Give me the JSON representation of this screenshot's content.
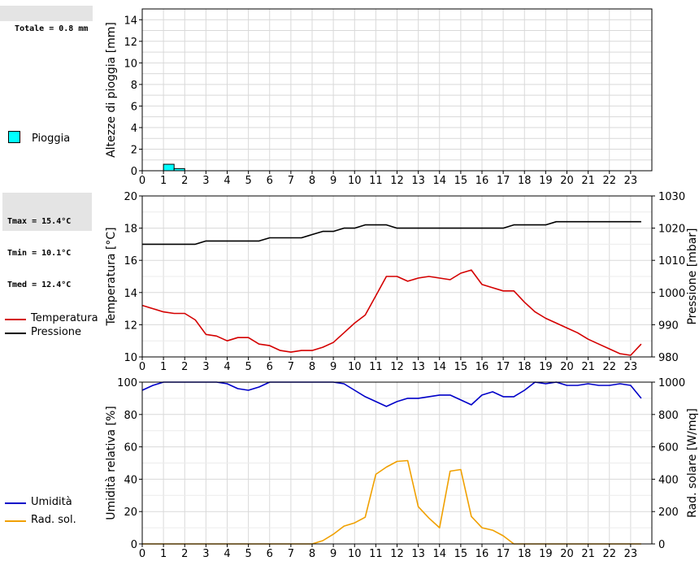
{
  "rain_box": {
    "line1": "Totale = 0.8 mm"
  },
  "temp_box": {
    "line1": "Tmax = 15.4°C",
    "line2": "Tmin = 10.1°C",
    "line3": "Tmed = 12.4°C"
  },
  "legends": {
    "rain": {
      "label": "Pioggia",
      "color": "#00ffff"
    },
    "temperature": {
      "label": "Temperatura",
      "color": "#d40000"
    },
    "pressure": {
      "label": "Pressione",
      "color": "#000000"
    },
    "humidity": {
      "label": "Umidità",
      "color": "#0000c8"
    },
    "solar": {
      "label": "Rad. sol.",
      "color": "#f0a000"
    }
  },
  "chart_data": [
    {
      "type": "bar",
      "ylabel": "Altezze di pioggia [mm]",
      "ylim": [
        0,
        15
      ],
      "y_ticks": [
        0,
        2,
        4,
        6,
        8,
        10,
        12,
        14
      ],
      "x_ticks": [
        "0",
        "1",
        "2",
        "3",
        "4",
        "5",
        "6",
        "7",
        "8",
        "9",
        "10",
        "11",
        "12",
        "13",
        "14",
        "15",
        "16",
        "17",
        "18",
        "19",
        "20",
        "21",
        "22",
        "23"
      ],
      "bar_width_hours": 0.5,
      "series": [
        {
          "name": "Pioggia",
          "x": [
            1.0,
            1.5
          ],
          "values": [
            0.6,
            0.2
          ]
        }
      ]
    },
    {
      "type": "line",
      "ylabel": "Temperatura [°C]",
      "y2label": "Pressione [mbar]",
      "ylim": [
        10,
        20
      ],
      "y2lim": [
        980,
        1030
      ],
      "y_ticks": [
        10,
        12,
        14,
        16,
        18,
        20
      ],
      "y2_ticks": [
        980,
        990,
        1000,
        1010,
        1020,
        1030
      ],
      "x_ticks": [
        "0",
        "1",
        "2",
        "3",
        "4",
        "5",
        "6",
        "7",
        "8",
        "9",
        "10",
        "11",
        "12",
        "13",
        "14",
        "15",
        "16",
        "17",
        "18",
        "19",
        "20",
        "21",
        "22",
        "23"
      ],
      "series": [
        {
          "name": "Temperatura",
          "axis": "left",
          "x": [
            0,
            0.5,
            1,
            1.5,
            2,
            2.5,
            3,
            3.5,
            4,
            4.5,
            5,
            5.5,
            6,
            6.5,
            7,
            7.5,
            8,
            8.5,
            9,
            9.5,
            10,
            10.5,
            11,
            11.5,
            12,
            12.5,
            13,
            13.5,
            14,
            14.5,
            15,
            15.5,
            16,
            16.5,
            17,
            17.5,
            18,
            18.5,
            19,
            19.5,
            20,
            20.5,
            21,
            21.5,
            22,
            22.5,
            23,
            23.5
          ],
          "values": [
            13.2,
            13.0,
            12.8,
            12.7,
            12.7,
            12.3,
            11.4,
            11.3,
            11.0,
            11.2,
            11.2,
            10.8,
            10.7,
            10.4,
            10.3,
            10.4,
            10.4,
            10.6,
            10.9,
            11.5,
            12.1,
            12.6,
            13.8,
            15.0,
            15.0,
            14.7,
            14.9,
            15.0,
            14.9,
            14.8,
            15.2,
            15.4,
            14.5,
            14.3,
            14.1,
            14.1,
            13.4,
            12.8,
            12.4,
            12.1,
            11.8,
            11.5,
            11.1,
            10.8,
            10.5,
            10.2,
            10.1,
            10.8
          ]
        },
        {
          "name": "Pressione",
          "axis": "right",
          "x": [
            0,
            0.5,
            1,
            1.5,
            2,
            2.5,
            3,
            3.5,
            4,
            4.5,
            5,
            5.5,
            6,
            6.5,
            7,
            7.5,
            8,
            8.5,
            9,
            9.5,
            10,
            10.5,
            11,
            11.5,
            12,
            12.5,
            13,
            13.5,
            14,
            14.5,
            15,
            15.5,
            16,
            16.5,
            17,
            17.5,
            18,
            18.5,
            19,
            19.5,
            20,
            20.5,
            21,
            21.5,
            22,
            22.5,
            23,
            23.5
          ],
          "values": [
            1015,
            1015,
            1015,
            1015,
            1015,
            1015,
            1016,
            1016,
            1016,
            1016,
            1016,
            1016,
            1017,
            1017,
            1017,
            1017,
            1018,
            1019,
            1019,
            1020,
            1020,
            1021,
            1021,
            1021,
            1020,
            1020,
            1020,
            1020,
            1020,
            1020,
            1020,
            1020,
            1020,
            1020,
            1020,
            1021,
            1021,
            1021,
            1021,
            1022,
            1022,
            1022,
            1022,
            1022,
            1022,
            1022,
            1022,
            1022
          ]
        }
      ]
    },
    {
      "type": "line",
      "ylabel": "Umidità relativa [%]",
      "y2label": "Rad. solare [W/mq]",
      "ylim": [
        0,
        100
      ],
      "y2lim": [
        0,
        1000
      ],
      "y_ticks": [
        0,
        20,
        40,
        60,
        80,
        100
      ],
      "y2_ticks": [
        0,
        200,
        400,
        600,
        800,
        1000
      ],
      "x_ticks": [
        "0",
        "1",
        "2",
        "3",
        "4",
        "5",
        "6",
        "7",
        "8",
        "9",
        "10",
        "11",
        "12",
        "13",
        "14",
        "15",
        "16",
        "17",
        "18",
        "19",
        "20",
        "21",
        "22",
        "23"
      ],
      "series": [
        {
          "name": "Umidità",
          "axis": "left",
          "x": [
            0,
            0.5,
            1,
            1.5,
            2,
            2.5,
            3,
            3.5,
            4,
            4.5,
            5,
            5.5,
            6,
            6.5,
            7,
            7.5,
            8,
            8.5,
            9,
            9.5,
            10,
            10.5,
            11,
            11.5,
            12,
            12.5,
            13,
            13.5,
            14,
            14.5,
            15,
            15.5,
            16,
            16.5,
            17,
            17.5,
            18,
            18.5,
            19,
            19.5,
            20,
            20.5,
            21,
            21.5,
            22,
            22.5,
            23,
            23.5
          ],
          "values": [
            95,
            98,
            100,
            100,
            100,
            100,
            100,
            100,
            99,
            96,
            95,
            97,
            100,
            100,
            100,
            100,
            100,
            100,
            100,
            99,
            95,
            91,
            88,
            85,
            88,
            90,
            90,
            91,
            92,
            92,
            89,
            86,
            92,
            94,
            91,
            91,
            95,
            100,
            99,
            100,
            98,
            98,
            99,
            98,
            98,
            99,
            98,
            90
          ]
        },
        {
          "name": "Rad. sol.",
          "axis": "right",
          "x": [
            0,
            0.5,
            1,
            1.5,
            2,
            2.5,
            3,
            3.5,
            4,
            4.5,
            5,
            5.5,
            6,
            6.5,
            7,
            7.5,
            8,
            8.5,
            9,
            9.5,
            10,
            10.5,
            11,
            11.5,
            12,
            12.5,
            13,
            13.5,
            14,
            14.5,
            15,
            15.5,
            16,
            16.5,
            17,
            17.5,
            18,
            18.5,
            19,
            19.5,
            20,
            20.5,
            21,
            21.5,
            22,
            22.5,
            23,
            23.5
          ],
          "values": [
            0,
            0,
            0,
            0,
            0,
            0,
            0,
            0,
            0,
            0,
            0,
            0,
            0,
            0,
            0,
            0,
            0,
            20,
            60,
            110,
            130,
            165,
            430,
            475,
            510,
            515,
            230,
            160,
            100,
            450,
            460,
            170,
            100,
            85,
            50,
            0,
            0,
            0,
            0,
            0,
            0,
            0,
            0,
            0,
            0,
            0,
            0,
            0
          ]
        }
      ]
    }
  ]
}
